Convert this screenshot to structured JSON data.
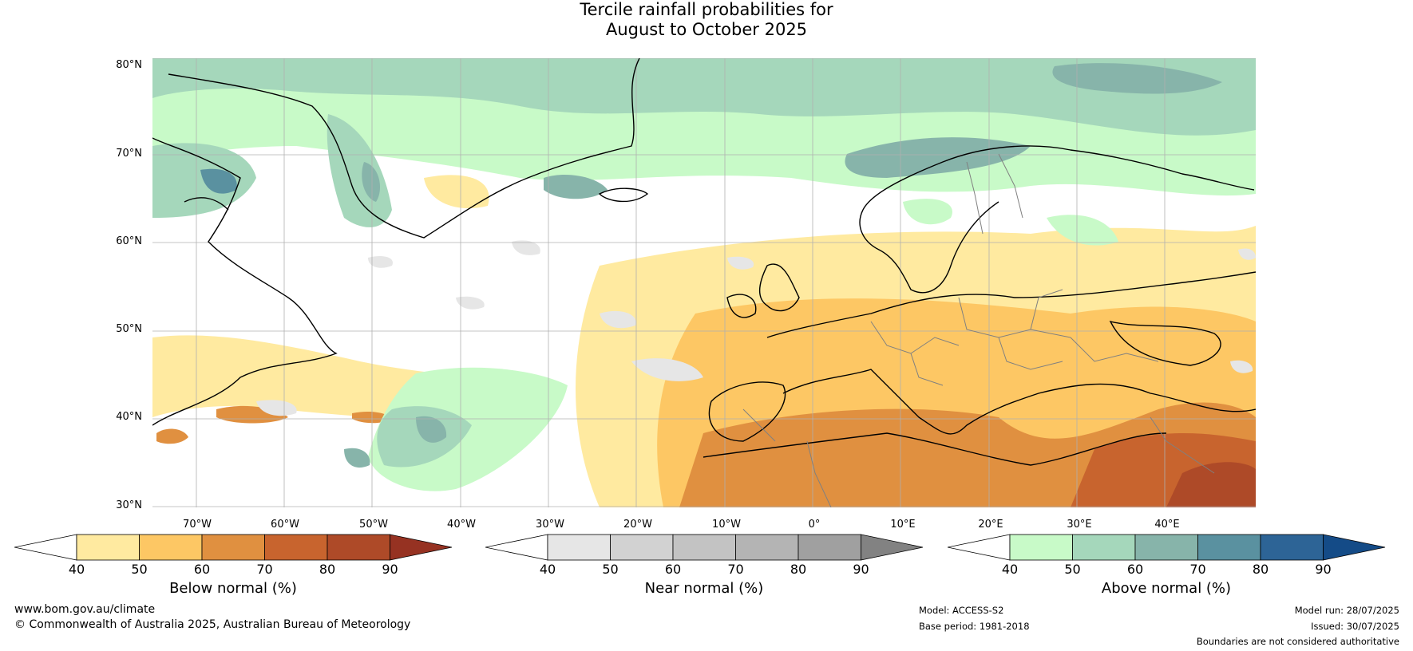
{
  "title": {
    "line1": "Tercile rainfall probabilities for",
    "line2": "August to October 2025"
  },
  "lat_labels": [
    "80°N",
    "70°N",
    "60°N",
    "50°N",
    "40°N",
    "30°N"
  ],
  "lon_labels": [
    "70°W",
    "60°W",
    "50°W",
    "40°W",
    "30°W",
    "20°W",
    "10°W",
    "0°",
    "10°E",
    "20°E",
    "30°E",
    "40°E"
  ],
  "colorbars": [
    {
      "title": "Below normal (%)",
      "ticks": [
        "40",
        "50",
        "60",
        "70",
        "80",
        "90"
      ],
      "colors": [
        "#ffffff",
        "#ffeaa0",
        "#fdc764",
        "#e09040",
        "#c8642e",
        "#ae4a28",
        "#963222"
      ]
    },
    {
      "title": "Near normal (%)",
      "ticks": [
        "40",
        "50",
        "60",
        "70",
        "80",
        "90"
      ],
      "colors": [
        "#ffffff",
        "#e6e6e6",
        "#d2d2d2",
        "#c3c3c3",
        "#b4b4b4",
        "#a0a0a0",
        "#828282"
      ]
    },
    {
      "title": "Above normal (%)",
      "ticks": [
        "40",
        "50",
        "60",
        "70",
        "80",
        "90"
      ],
      "colors": [
        "#ffffff",
        "#c8fac8",
        "#a5d7bb",
        "#87b4aa",
        "#5a91a0",
        "#2d6496",
        "#144b87"
      ]
    }
  ],
  "footer": {
    "url": "www.bom.gov.au/climate",
    "copyright": "© Commonwealth of Australia 2025, Australian Bureau of Meteorology",
    "model": "Model: ACCESS-S2",
    "base_period": "Base period: 1981-2018",
    "model_run": "Model run: 28/07/2025",
    "issued": "Issued: 30/07/2025",
    "disclaimer": "Boundaries are not considered authoritative"
  }
}
